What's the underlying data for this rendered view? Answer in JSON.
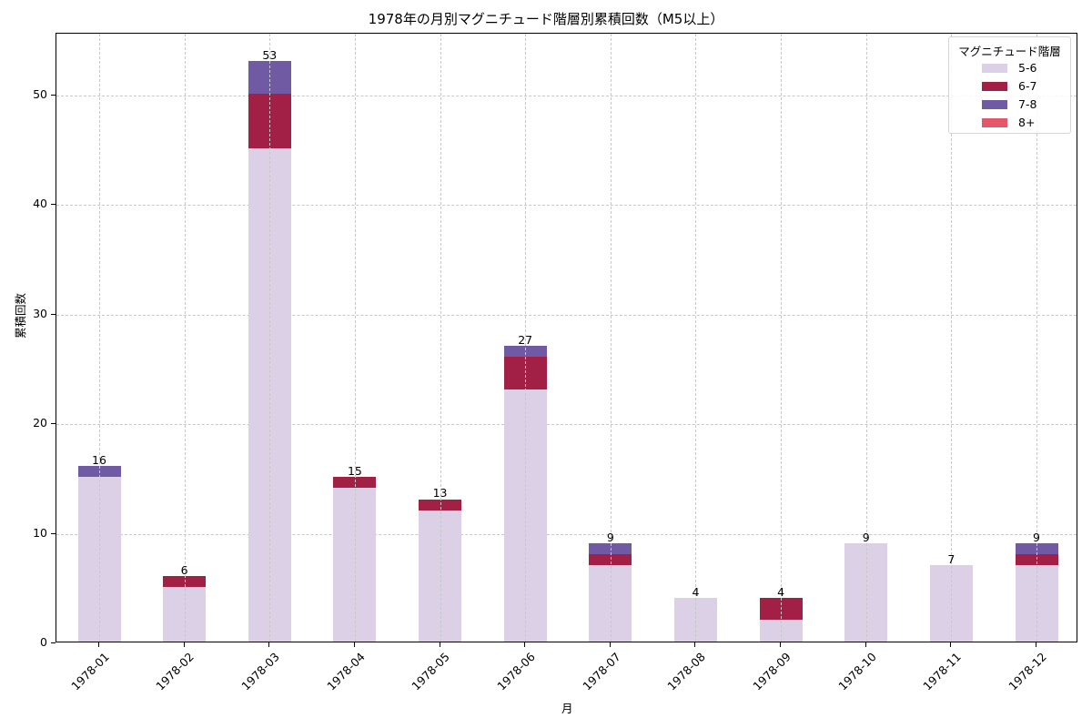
{
  "chart_data": {
    "type": "bar",
    "stacked": true,
    "title": "1978年の月別マグニチュード階層別累積回数（M5以上）",
    "xlabel": "月",
    "ylabel": "累積回数",
    "ylim": [
      0,
      55.65
    ],
    "yticks": [
      0,
      10,
      20,
      30,
      40,
      50
    ],
    "grid": true,
    "legend_title": "マグニチュード階層",
    "legend_position": "upper right",
    "categories": [
      "1978-01",
      "1978-02",
      "1978-03",
      "1978-04",
      "1978-05",
      "1978-06",
      "1978-07",
      "1978-08",
      "1978-09",
      "1978-10",
      "1978-11",
      "1978-12"
    ],
    "series": [
      {
        "name": "5-6",
        "color": "#dcd0e6",
        "values": [
          15,
          5,
          45,
          14,
          12,
          23,
          7,
          4,
          2,
          9,
          7,
          7
        ]
      },
      {
        "name": "6-7",
        "color": "#a21f45",
        "values": [
          0,
          1,
          5,
          1,
          1,
          3,
          1,
          0,
          2,
          0,
          0,
          1
        ]
      },
      {
        "name": "7-8",
        "color": "#705aa4",
        "values": [
          1,
          0,
          3,
          0,
          0,
          1,
          1,
          0,
          0,
          0,
          0,
          1
        ]
      },
      {
        "name": "8+",
        "color": "#e5566a",
        "values": [
          0,
          0,
          0,
          0,
          0,
          0,
          0,
          0,
          0,
          0,
          0,
          0
        ]
      }
    ],
    "totals": [
      16,
      6,
      53,
      15,
      13,
      27,
      9,
      4,
      4,
      9,
      7,
      9
    ]
  }
}
